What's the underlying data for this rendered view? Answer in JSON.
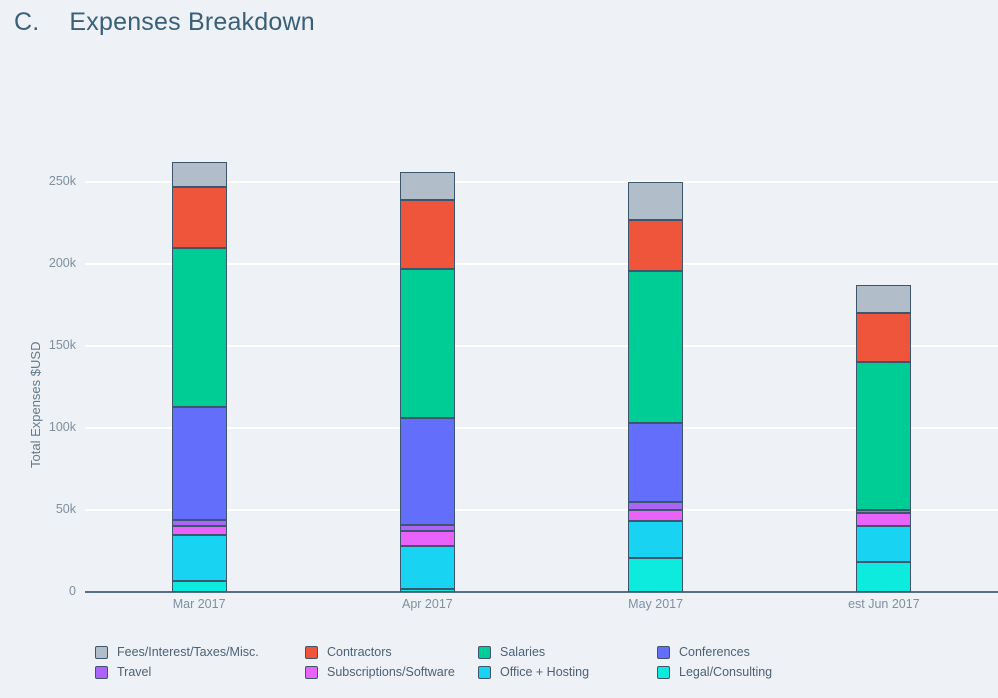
{
  "page": {
    "title_prefix": "C.",
    "title": "Expenses Breakdown"
  },
  "chart_data": {
    "type": "bar",
    "stacked": true,
    "stack_order": "bottom-to-top",
    "title": "Expenses Breakdown",
    "categories": [
      "Mar 2017",
      "Apr 2017",
      "May 2017",
      "est Jun 2017"
    ],
    "series": [
      {
        "name": "Legal/Consulting",
        "color": "#0debde",
        "values": [
          7000,
          2000,
          21000,
          18000
        ]
      },
      {
        "name": "Office + Hosting",
        "color": "#19d3f3",
        "values": [
          28000,
          26000,
          22000,
          22000
        ]
      },
      {
        "name": "Subscriptions/Software",
        "color": "#e763fa",
        "values": [
          5000,
          9000,
          7000,
          8000
        ]
      },
      {
        "name": "Travel",
        "color": "#ab63fa",
        "values": [
          4000,
          4000,
          5000,
          2000
        ]
      },
      {
        "name": "Conferences",
        "color": "#636efa",
        "values": [
          69000,
          65000,
          48000,
          0
        ]
      },
      {
        "name": "Salaries",
        "color": "#00cc96",
        "values": [
          97000,
          91000,
          93000,
          90000
        ]
      },
      {
        "name": "Contractors",
        "color": "#ef553b",
        "values": [
          37000,
          42000,
          31000,
          30000
        ]
      },
      {
        "name": "Fees/Interest/Taxes/Misc.",
        "color": "#b1bdc9",
        "values": [
          15000,
          17000,
          23000,
          17000
        ]
      }
    ],
    "ylabel": "Total Expenses $USD",
    "xlabel": "",
    "ylim": [
      0,
      250000
    ],
    "ytick_values": [
      0,
      50000,
      100000,
      150000,
      200000,
      250000
    ],
    "ytick_labels": [
      "0",
      "50k",
      "100k",
      "150k",
      "200k",
      "250k"
    ],
    "grid": true,
    "legend_position": "bottom",
    "legend_order": [
      "Fees/Interest/Taxes/Misc.",
      "Contractors",
      "Salaries",
      "Conferences",
      "Travel",
      "Subscriptions/Software",
      "Office + Hosting",
      "Legal/Consulting"
    ]
  }
}
